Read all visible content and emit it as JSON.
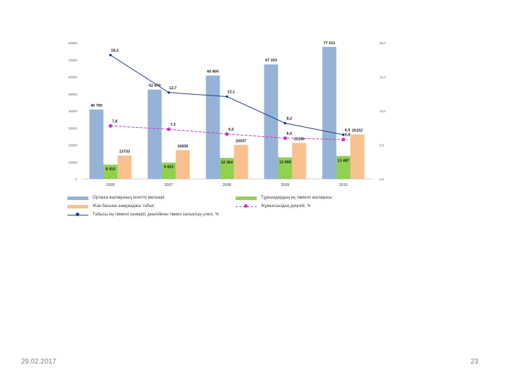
{
  "chart_data": {
    "type": "bar",
    "categories": [
      "2005",
      "2007",
      "2008",
      "2009",
      "2010"
    ],
    "series": [
      {
        "name": "Орташа жалақының есептік мөлшері",
        "kind": "bar",
        "axis": "left",
        "color": "#95b3d7",
        "values": [
          40790,
          52479,
          60805,
          67333,
          77611
        ],
        "labels": [
          "40 790",
          "52 479",
          "60 805",
          "67 333",
          "77 611"
        ]
      },
      {
        "name": "Тұрғындардың ең төменгі жалақысы",
        "kind": "bar",
        "axis": "left",
        "color": "#92d050",
        "values": [
          8410,
          9653,
          12364,
          12668,
          13487
        ],
        "labels": [
          "8 410",
          "9 653",
          "12 364",
          "12 668",
          "13 487"
        ]
      },
      {
        "name": "Жан басына шаққандағы табыс",
        "kind": "bar",
        "axis": "left",
        "color": "#fac090",
        "values": [
          13733,
          16935,
          20037,
          21146,
          26152
        ],
        "labels": [
          "13733",
          "16935",
          "20037",
          "21146",
          "26152"
        ]
      },
      {
        "name": "Жұмыссыздық деңгейі, %",
        "kind": "line",
        "axis": "right",
        "color": "#cc33cc",
        "dash": true,
        "values": [
          7.8,
          7.3,
          6.6,
          6.0,
          5.8
        ],
        "labels": [
          "7,8",
          "7,3",
          "6,6",
          "6,0",
          "5,8"
        ]
      },
      {
        "name": "Табысы ең төменгі күнкөріс деңгейінен төмен халықтың үлесі, %",
        "kind": "line",
        "axis": "right",
        "color": "#1f3d99",
        "dash": false,
        "values": [
          18.2,
          12.7,
          12.1,
          8.2,
          6.5
        ],
        "labels": [
          "18,2",
          "12,7",
          "12,1",
          "8,2",
          "6,5"
        ]
      }
    ],
    "left_axis": {
      "min": 0,
      "max": 80000,
      "ticks": [
        "0",
        "10000",
        "20000",
        "30000",
        "40000",
        "50000",
        "60000",
        "70000",
        "80000"
      ]
    },
    "right_axis": {
      "min": 0,
      "max": 20,
      "ticks": [
        "0,0",
        "5,0",
        "10,0",
        "15,0",
        "20,0"
      ]
    },
    "legend_position": "bottom",
    "grid": false
  },
  "footer": {
    "date": "29.02.2017",
    "page": "23"
  }
}
